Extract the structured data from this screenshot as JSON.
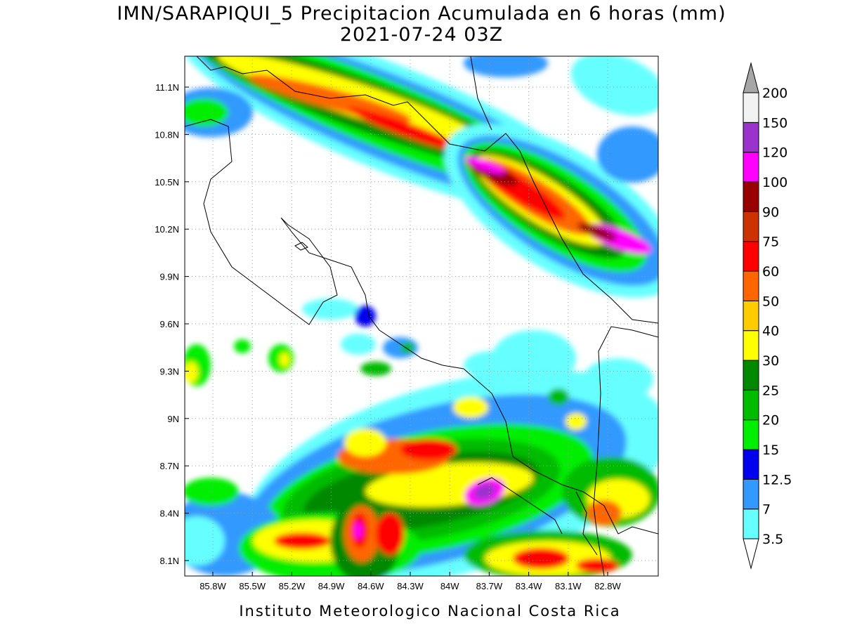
{
  "map": {
    "title": "IMN/SARAPIQUI_5 Precipitacion Acumulada en 6 horas (mm)",
    "subtitle": "2021-07-24 03Z",
    "lon_ticks": [
      "85.8W",
      "85.5W",
      "85.2W",
      "84.9W",
      "84.6W",
      "84.3W",
      "84W",
      "83.7W",
      "83.4W",
      "83.1W",
      "82.8W"
    ],
    "lat_ticks": [
      "11.1N",
      "10.8N",
      "10.5N",
      "10.2N",
      "9.9N",
      "9.6N",
      "9.3N",
      "9N",
      "8.7N",
      "8.4N",
      "8.1N"
    ],
    "colorbar": {
      "levels": [
        3.5,
        7,
        12.5,
        15,
        20,
        25,
        30,
        40,
        50,
        60,
        75,
        90,
        100,
        120,
        150,
        200
      ],
      "colors": [
        "#66ffff",
        "#3399ff",
        "#0000ee",
        "#00ee00",
        "#00bb00",
        "#008800",
        "#ffff00",
        "#ffcc00",
        "#ff6600",
        "#ff0000",
        "#cc3300",
        "#990000",
        "#ff00ff",
        "#9933cc",
        "#f2f2f2"
      ],
      "under_color": "#ffffff",
      "over_color": "#a6a6a6"
    },
    "footer": "Instituto Meteorologico Nacional Costa Rica"
  }
}
